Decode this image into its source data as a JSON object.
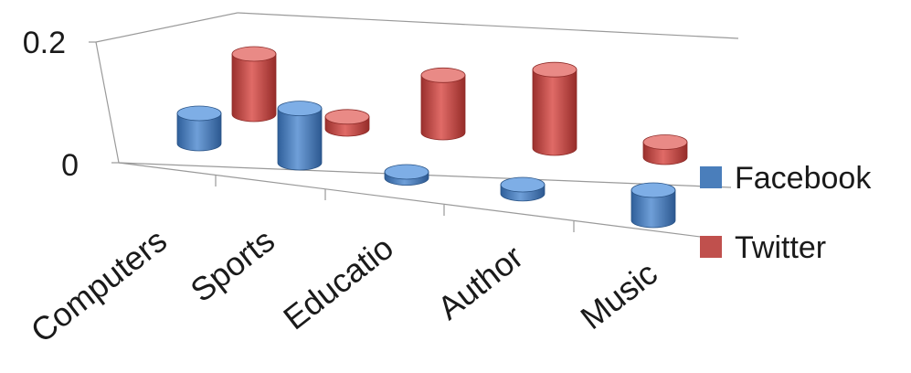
{
  "chart_data": {
    "type": "bar",
    "style": "3d-cylinder",
    "categories": [
      "Computers",
      "Sports",
      "Educatio",
      "Author",
      "Music"
    ],
    "y_ticks": [
      "0",
      "0.2"
    ],
    "ylim": [
      -0.05,
      0.2
    ],
    "grid": false,
    "legend_position": "right",
    "series": [
      {
        "name": "Facebook",
        "color": "#4a7ebb",
        "values": [
          0.05,
          0.09,
          -0.01,
          -0.015,
          -0.05
        ]
      },
      {
        "name": "Twitter",
        "color": "#c0504d",
        "values": [
          0.1,
          0.02,
          0.095,
          0.13,
          0.025
        ]
      }
    ]
  }
}
